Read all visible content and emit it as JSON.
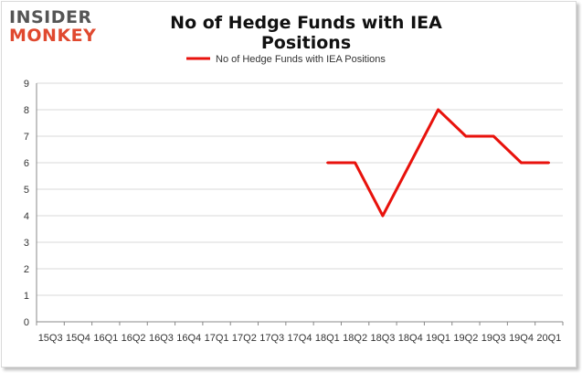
{
  "logo": {
    "top": "INSIDER",
    "bottom": "MONKEY"
  },
  "colors": {
    "line": "#e8120c",
    "grid": "#d9d9d9",
    "axis": "#888888",
    "logo_gray": "#555555",
    "logo_red": "#e0492f"
  },
  "chart_data": {
    "type": "line",
    "title": "No of Hedge Funds with IEA Positions",
    "xlabel": "",
    "ylabel": "",
    "ylim": [
      0,
      9
    ],
    "yticks": [
      0,
      1,
      2,
      3,
      4,
      5,
      6,
      7,
      8,
      9
    ],
    "grid": true,
    "legend_position": "top-center",
    "categories": [
      "15Q3",
      "15Q4",
      "16Q1",
      "16Q2",
      "16Q3",
      "16Q4",
      "17Q1",
      "17Q2",
      "17Q3",
      "17Q4",
      "18Q1",
      "18Q2",
      "18Q3",
      "18Q4",
      "19Q1",
      "19Q2",
      "19Q3",
      "19Q4",
      "20Q1"
    ],
    "series": [
      {
        "name": "No of Hedge Funds with IEA Positions",
        "values": [
          null,
          null,
          null,
          null,
          null,
          null,
          null,
          null,
          null,
          null,
          6,
          6,
          4,
          6,
          8,
          7,
          7,
          6,
          6
        ]
      }
    ]
  }
}
